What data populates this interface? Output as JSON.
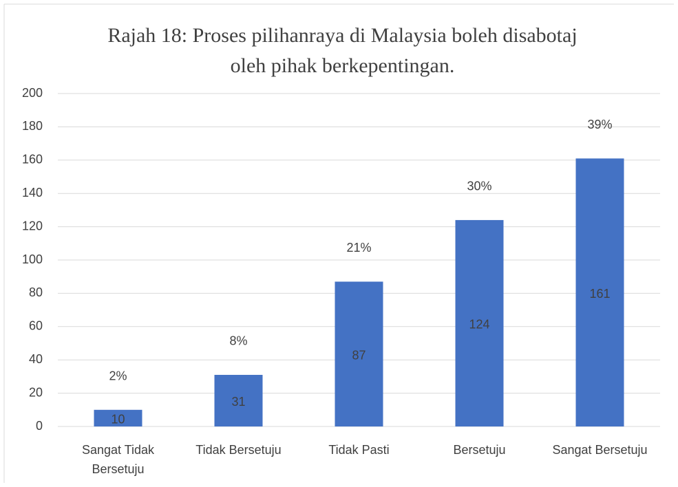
{
  "chart_data": {
    "type": "bar",
    "title": "Rajah 18: Proses pilihanraya di Malaysia boleh disabotaj oleh pihak berkepentingan.",
    "categories": [
      "Sangat Tidak Bersetuju",
      "Tidak Bersetuju",
      "Tidak Pasti",
      "Bersetuju",
      "Sangat Bersetuju"
    ],
    "values": [
      10,
      31,
      87,
      124,
      161
    ],
    "annotations": [
      "2%",
      "8%",
      "21%",
      "30%",
      "39%"
    ],
    "color": "#4472c4",
    "ylim": [
      0,
      200
    ],
    "yticks": [
      0,
      20,
      40,
      60,
      80,
      100,
      120,
      140,
      160,
      180,
      200
    ],
    "grid": true
  }
}
